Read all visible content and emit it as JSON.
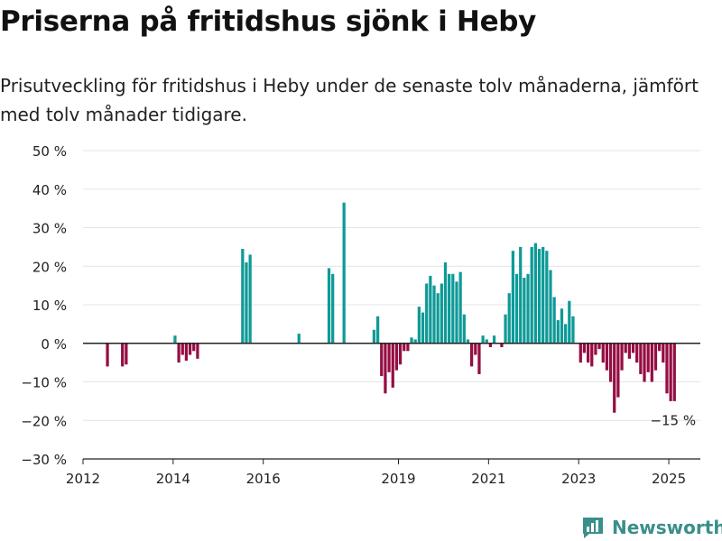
{
  "title": "Priserna på fritidshus sjönk i Heby",
  "subtitle": "Prisutveckling för fritidshus i Heby under de senaste tolv månaderna, jämfört med tolv månader tidigare.",
  "brand": {
    "name": "Newsworthy",
    "icon": "newsworthy-logo-icon",
    "color": "#3a8f8a"
  },
  "chart_data": {
    "type": "bar",
    "ylim": [
      -30,
      50
    ],
    "yticks": [
      -30,
      -20,
      -10,
      0,
      10,
      20,
      30,
      40,
      50
    ],
    "ytick_labels": [
      "−30 %",
      "−20 %",
      "−10 %",
      "0 %",
      "10 %",
      "20 %",
      "30 %",
      "40 %",
      "50 %"
    ],
    "xticks": [
      {
        "label": "2012",
        "at": 2012.0
      },
      {
        "label": "2014",
        "at": 2014.0
      },
      {
        "label": "2016",
        "at": 2016.0
      },
      {
        "label": "2019",
        "at": 2019.0
      },
      {
        "label": "2021",
        "at": 2021.0
      },
      {
        "label": "2023",
        "at": 2023.0
      },
      {
        "label": "2025",
        "at": 2025.0
      }
    ],
    "grid": true,
    "colors": {
      "positive": "#0e9a97",
      "negative": "#950d43"
    },
    "annotation": {
      "text": "−15 %",
      "at": "2025-01"
    },
    "series": [
      {
        "values": [
          [
            "2012-07",
            -6
          ],
          [
            "2012-11",
            -6
          ],
          [
            "2012-12",
            -5.5
          ],
          [
            "2014-01",
            2
          ],
          [
            "2014-02",
            -5
          ],
          [
            "2014-03",
            -3
          ],
          [
            "2014-04",
            -4.5
          ],
          [
            "2014-05",
            -3
          ],
          [
            "2014-06",
            -2
          ],
          [
            "2014-07",
            -4
          ],
          [
            "2015-07",
            24.5
          ],
          [
            "2015-08",
            21
          ],
          [
            "2015-09",
            23
          ],
          [
            "2016-10",
            2.5
          ],
          [
            "2017-06",
            19.5
          ],
          [
            "2017-07",
            18
          ],
          [
            "2017-10",
            36.5
          ],
          [
            "2018-06",
            3.5
          ],
          [
            "2018-07",
            7
          ],
          [
            "2018-08",
            -8.5
          ],
          [
            "2018-09",
            -13
          ],
          [
            "2018-10",
            -7.5
          ],
          [
            "2018-11",
            -11.5
          ],
          [
            "2018-12",
            -7
          ],
          [
            "2019-01",
            -5.5
          ],
          [
            "2019-02",
            -2
          ],
          [
            "2019-03",
            -2
          ],
          [
            "2019-04",
            1.5
          ],
          [
            "2019-05",
            1
          ],
          [
            "2019-06",
            9.5
          ],
          [
            "2019-07",
            8
          ],
          [
            "2019-08",
            15.5
          ],
          [
            "2019-09",
            17.5
          ],
          [
            "2019-10",
            15
          ],
          [
            "2019-11",
            13
          ],
          [
            "2019-12",
            15.5
          ],
          [
            "2020-01",
            21
          ],
          [
            "2020-02",
            18
          ],
          [
            "2020-03",
            18
          ],
          [
            "2020-04",
            16
          ],
          [
            "2020-05",
            18.5
          ],
          [
            "2020-06",
            7.5
          ],
          [
            "2020-07",
            1
          ],
          [
            "2020-08",
            -6
          ],
          [
            "2020-09",
            -3
          ],
          [
            "2020-10",
            -8
          ],
          [
            "2020-11",
            2
          ],
          [
            "2020-12",
            1
          ],
          [
            "2021-01",
            -1
          ],
          [
            "2021-02",
            2
          ],
          [
            "2021-04",
            -1
          ],
          [
            "2021-05",
            7.5
          ],
          [
            "2021-06",
            13
          ],
          [
            "2021-07",
            24
          ],
          [
            "2021-08",
            18
          ],
          [
            "2021-09",
            25
          ],
          [
            "2021-10",
            17
          ],
          [
            "2021-11",
            18
          ],
          [
            "2021-12",
            25
          ],
          [
            "2022-01",
            26
          ],
          [
            "2022-02",
            24.5
          ],
          [
            "2022-03",
            25
          ],
          [
            "2022-04",
            24
          ],
          [
            "2022-05",
            19
          ],
          [
            "2022-06",
            12
          ],
          [
            "2022-07",
            6
          ],
          [
            "2022-08",
            9
          ],
          [
            "2022-09",
            5
          ],
          [
            "2022-10",
            11
          ],
          [
            "2022-11",
            7
          ],
          [
            "2023-01",
            -5
          ],
          [
            "2023-02",
            -2.5
          ],
          [
            "2023-03",
            -5
          ],
          [
            "2023-04",
            -6
          ],
          [
            "2023-05",
            -3
          ],
          [
            "2023-06",
            -1.5
          ],
          [
            "2023-07",
            -5
          ],
          [
            "2023-08",
            -7
          ],
          [
            "2023-09",
            -10
          ],
          [
            "2023-10",
            -18
          ],
          [
            "2023-11",
            -14
          ],
          [
            "2023-12",
            -7
          ],
          [
            "2024-01",
            -2.5
          ],
          [
            "2024-02",
            -4
          ],
          [
            "2024-03",
            -2.5
          ],
          [
            "2024-04",
            -5
          ],
          [
            "2024-05",
            -8
          ],
          [
            "2024-06",
            -10
          ],
          [
            "2024-07",
            -7.5
          ],
          [
            "2024-08",
            -10
          ],
          [
            "2024-09",
            -7
          ],
          [
            "2024-10",
            -2
          ],
          [
            "2024-11",
            -5
          ],
          [
            "2024-12",
            -13
          ],
          [
            "2025-01",
            -15
          ],
          [
            "2025-02",
            -15
          ]
        ]
      }
    ]
  }
}
